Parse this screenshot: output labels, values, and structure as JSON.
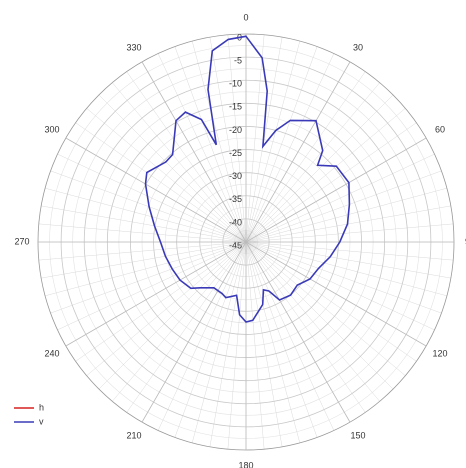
{
  "chart_data": {
    "type": "polar",
    "theta_ticks": [
      0,
      30,
      60,
      90,
      120,
      150,
      180,
      210,
      240,
      270,
      300,
      330
    ],
    "rlim": [
      -45,
      0
    ],
    "rticks": [
      0,
      -5,
      -10,
      -15,
      -20,
      -25,
      -30,
      -35,
      -40,
      -45
    ],
    "x": [
      0,
      5,
      8,
      10,
      15,
      20,
      30,
      40,
      43,
      50,
      60,
      70,
      80,
      90,
      100,
      110,
      120,
      130,
      140,
      150,
      155,
      160,
      165,
      175,
      180,
      185,
      190,
      200,
      205,
      215,
      225,
      230,
      240,
      250,
      260,
      270,
      280,
      290,
      300,
      305,
      315,
      320,
      330,
      335,
      340,
      343,
      346,
      350,
      355
    ],
    "series": [
      {
        "name": "h",
        "color": "#d62020",
        "values": [
          null,
          null,
          null,
          null,
          null,
          null,
          null,
          null,
          null,
          null,
          null,
          null,
          null,
          null,
          null,
          null,
          null,
          null,
          null,
          null,
          null,
          null,
          null,
          null,
          null,
          null,
          null,
          null,
          null,
          null,
          null,
          null,
          null,
          null,
          null,
          null,
          null,
          null,
          null,
          null,
          null,
          null,
          null,
          null,
          null,
          null,
          null,
          null,
          null
        ]
      },
      {
        "name": "v",
        "color": "#3a3ab8",
        "values": [
          -0.5,
          -5,
          -12,
          -24,
          -20,
          -17,
          -14.7,
          -19.2,
          -22.3,
          -19.5,
          -19.3,
          -21.2,
          -22.7,
          -24.7,
          -26.5,
          -28.3,
          -29,
          -30.5,
          -30,
          -30.5,
          -33.3,
          -34,
          -31,
          -28,
          -27.7,
          -29.2,
          -33.3,
          -32.2,
          -32.7,
          -32.9,
          -31,
          -29.4,
          -28.5,
          -28,
          -27.3,
          -26.5,
          -24.9,
          -22.7,
          -19.9,
          -18.8,
          -20.5,
          -20.3,
          -14.7,
          -14,
          -16.8,
          -23,
          -11,
          -3,
          -1
        ]
      }
    ],
    "grid": true,
    "legend": "lower left"
  }
}
